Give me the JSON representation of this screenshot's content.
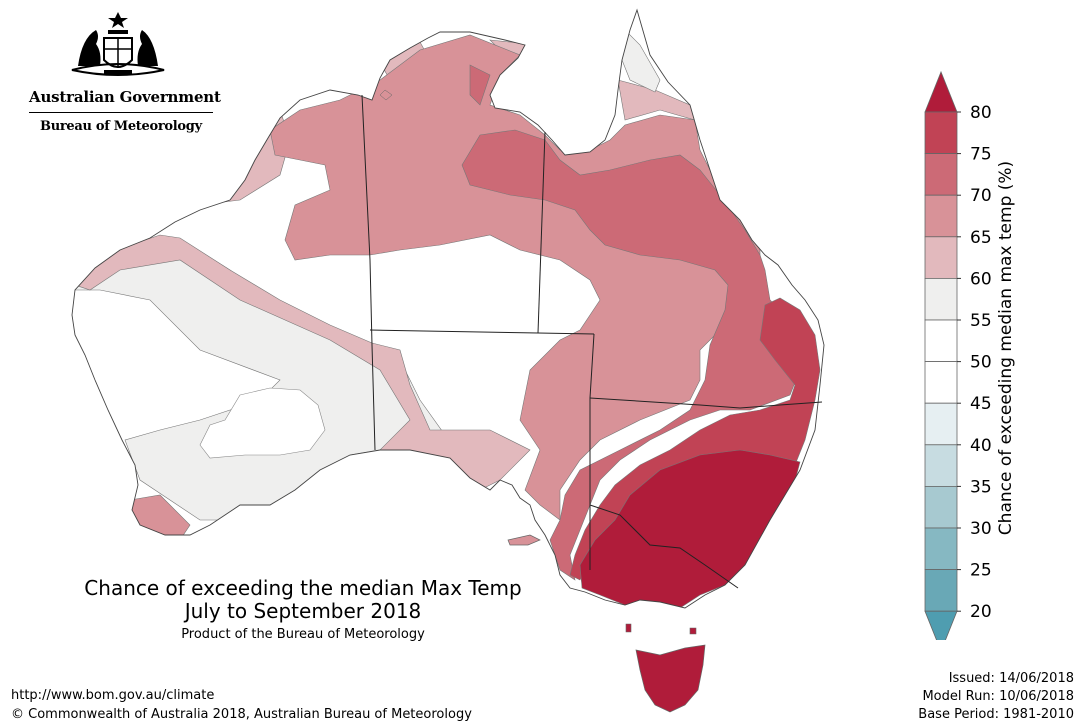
{
  "header": {
    "government_name": "Australian Government",
    "agency_name": "Bureau of Meteorology"
  },
  "map": {
    "title": "Chance of exceeding the median Max Temp",
    "period": "July to September 2018",
    "product_credit": "Product of the Bureau of Meteorology",
    "regions": [
      {
        "name": "west-interior",
        "range": "50-55",
        "color": "#ffffff"
      },
      {
        "name": "west-belt",
        "range": "55-60",
        "color": "#efefee"
      },
      {
        "name": "central-west",
        "range": "60-65",
        "color": "#e2b9bd"
      },
      {
        "name": "north-central",
        "range": "65-70",
        "color": "#d89298"
      },
      {
        "name": "northeast-queensland",
        "range": "70-75",
        "color": "#cc6a76"
      },
      {
        "name": "southeast-coast",
        "range": "75-80",
        "color": "#c14355"
      },
      {
        "name": "southeast-corner",
        "range": "80+",
        "color": "#b01c3a"
      }
    ]
  },
  "legend": {
    "label": "Chance of exceeding median max temp (%)",
    "ticks": [
      "80",
      "75",
      "70",
      "65",
      "60",
      "55",
      "50",
      "45",
      "40",
      "35",
      "30",
      "25",
      "20"
    ],
    "bands": [
      {
        "range": "above 80",
        "color": "#b01c3a"
      },
      {
        "range": "75-80",
        "color": "#c14355"
      },
      {
        "range": "70-75",
        "color": "#cc6a76"
      },
      {
        "range": "65-70",
        "color": "#d89298"
      },
      {
        "range": "60-65",
        "color": "#e2b9bd"
      },
      {
        "range": "55-60",
        "color": "#efefee"
      },
      {
        "range": "50-55",
        "color": "#ffffff"
      },
      {
        "range": "45-50",
        "color": "#ffffff"
      },
      {
        "range": "40-45",
        "color": "#e6eff2"
      },
      {
        "range": "35-40",
        "color": "#c7dce1"
      },
      {
        "range": "30-35",
        "color": "#a7c9d0"
      },
      {
        "range": "25-30",
        "color": "#86b8c2"
      },
      {
        "range": "20-25",
        "color": "#69a8b6"
      },
      {
        "range": "below 20",
        "color": "#4f9db0"
      }
    ]
  },
  "footer": {
    "url": "http://www.bom.gov.au/climate",
    "copyright": "© Commonwealth of Australia 2018, Australian Bureau of Meteorology",
    "issued": "Issued: 14/06/2018",
    "model_run": "Model Run: 10/06/2018",
    "base_period": "Base Period: 1981-2010"
  }
}
